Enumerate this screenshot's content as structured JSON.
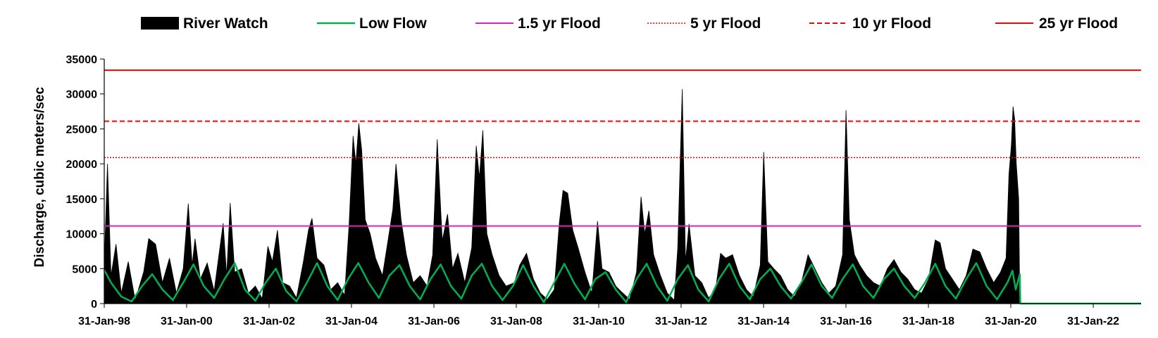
{
  "chart_data": {
    "type": "area",
    "title": "",
    "xlabel": "",
    "ylabel": "Discharge, cubic meters/sec",
    "ylim": [
      0,
      35000
    ],
    "xlim": [
      "1998-01-31",
      "2023-03-31"
    ],
    "grid": false,
    "legend_position": "top",
    "y_ticks": [
      0,
      5000,
      10000,
      15000,
      20000,
      25000,
      30000,
      35000
    ],
    "x_tick_labels": [
      "31-Jan-98",
      "31-Jan-00",
      "31-Jan-02",
      "31-Jan-04",
      "31-Jan-06",
      "31-Jan-08",
      "31-Jan-10",
      "31-Jan-12",
      "31-Jan-14",
      "31-Jan-16",
      "31-Jan-18",
      "31-Jan-20",
      "31-Jan-22"
    ],
    "x_tick_dates": [
      "1998-01-31",
      "2000-01-31",
      "2002-01-31",
      "2004-01-31",
      "2006-01-31",
      "2008-01-31",
      "2010-01-31",
      "2012-01-31",
      "2014-01-31",
      "2016-01-31",
      "2018-01-31",
      "2020-01-31",
      "2022-01-31"
    ],
    "series": [
      {
        "name": "River Watch",
        "style": "area",
        "color": "#000000",
        "points": [
          [
            "1998-01-31",
            5500
          ],
          [
            "1998-03-01",
            20000
          ],
          [
            "1998-04-01",
            4000
          ],
          [
            "1998-05-15",
            8500
          ],
          [
            "1998-07-01",
            1500
          ],
          [
            "1998-09-01",
            6000
          ],
          [
            "1998-11-01",
            500
          ],
          [
            "1999-01-15",
            4500
          ],
          [
            "1999-03-01",
            9300
          ],
          [
            "1999-05-01",
            8500
          ],
          [
            "1999-07-01",
            3000
          ],
          [
            "1999-09-01",
            6500
          ],
          [
            "1999-11-01",
            1500
          ],
          [
            "2000-01-01",
            5000
          ],
          [
            "2000-02-15",
            14300
          ],
          [
            "2000-03-20",
            5500
          ],
          [
            "2000-04-15",
            9300
          ],
          [
            "2000-06-01",
            3500
          ],
          [
            "2000-08-01",
            5800
          ],
          [
            "2000-10-01",
            1800
          ],
          [
            "2000-12-20",
            11500
          ],
          [
            "2001-01-20",
            4000
          ],
          [
            "2001-02-20",
            14400
          ],
          [
            "2001-04-01",
            4500
          ],
          [
            "2001-06-01",
            5000
          ],
          [
            "2001-08-01",
            1500
          ],
          [
            "2001-10-01",
            2500
          ],
          [
            "2001-12-01",
            700
          ],
          [
            "2002-01-20",
            8200
          ],
          [
            "2002-03-01",
            6000
          ],
          [
            "2002-04-15",
            10500
          ],
          [
            "2002-06-01",
            3000
          ],
          [
            "2002-08-01",
            2500
          ],
          [
            "2002-10-01",
            800
          ],
          [
            "2002-12-01",
            6000
          ],
          [
            "2003-01-15",
            10500
          ],
          [
            "2003-02-15",
            12200
          ],
          [
            "2003-04-01",
            6500
          ],
          [
            "2003-06-01",
            5500
          ],
          [
            "2003-08-01",
            2000
          ],
          [
            "2003-10-01",
            3000
          ],
          [
            "2003-12-01",
            1200
          ],
          [
            "2004-01-10",
            11300
          ],
          [
            "2004-02-15",
            24000
          ],
          [
            "2004-03-10",
            20000
          ],
          [
            "2004-04-05",
            25800
          ],
          [
            "2004-05-01",
            22000
          ],
          [
            "2004-06-01",
            12000
          ],
          [
            "2004-07-15",
            10000
          ],
          [
            "2004-09-01",
            6500
          ],
          [
            "2004-11-01",
            4000
          ],
          [
            "2004-12-20",
            9000
          ],
          [
            "2005-02-01",
            13500
          ],
          [
            "2005-03-01",
            20000
          ],
          [
            "2005-04-15",
            12000
          ],
          [
            "2005-06-01",
            7000
          ],
          [
            "2005-08-01",
            3000
          ],
          [
            "2005-10-01",
            4000
          ],
          [
            "2005-12-01",
            2500
          ],
          [
            "2006-01-20",
            7000
          ],
          [
            "2006-03-01",
            23500
          ],
          [
            "2006-04-15",
            9000
          ],
          [
            "2006-06-01",
            12800
          ],
          [
            "2006-07-15",
            5000
          ],
          [
            "2006-09-01",
            7200
          ],
          [
            "2006-11-01",
            3000
          ],
          [
            "2007-01-01",
            8000
          ],
          [
            "2007-02-10",
            22600
          ],
          [
            "2007-03-10",
            18000
          ],
          [
            "2007-04-10",
            24800
          ],
          [
            "2007-05-15",
            10000
          ],
          [
            "2007-07-01",
            7000
          ],
          [
            "2007-09-01",
            4000
          ],
          [
            "2007-11-01",
            2500
          ],
          [
            "2008-01-15",
            3000
          ],
          [
            "2008-03-01",
            5500
          ],
          [
            "2008-05-01",
            7200
          ],
          [
            "2008-07-01",
            3500
          ],
          [
            "2008-09-01",
            1500
          ],
          [
            "2008-11-01",
            600
          ],
          [
            "2009-01-01",
            2000
          ],
          [
            "2009-02-15",
            11500
          ],
          [
            "2009-03-20",
            16200
          ],
          [
            "2009-05-01",
            15800
          ],
          [
            "2009-06-15",
            10500
          ],
          [
            "2009-08-01",
            8000
          ],
          [
            "2009-10-01",
            4500
          ],
          [
            "2009-12-01",
            1500
          ],
          [
            "2010-01-20",
            11800
          ],
          [
            "2010-03-01",
            5000
          ],
          [
            "2010-05-01",
            4500
          ],
          [
            "2010-07-01",
            2500
          ],
          [
            "2010-09-01",
            1500
          ],
          [
            "2010-11-01",
            600
          ],
          [
            "2011-01-01",
            4500
          ],
          [
            "2011-02-10",
            15300
          ],
          [
            "2011-03-15",
            10000
          ],
          [
            "2011-04-20",
            13300
          ],
          [
            "2011-06-01",
            7000
          ],
          [
            "2011-08-01",
            4000
          ],
          [
            "2011-10-01",
            1500
          ],
          [
            "2011-12-01",
            500
          ],
          [
            "2012-01-01",
            8000
          ],
          [
            "2012-02-10",
            30700
          ],
          [
            "2012-03-10",
            6000
          ],
          [
            "2012-04-10",
            11400
          ],
          [
            "2012-06-01",
            4000
          ],
          [
            "2012-08-01",
            3000
          ],
          [
            "2012-10-01",
            800
          ],
          [
            "2012-12-01",
            2000
          ],
          [
            "2013-01-15",
            7200
          ],
          [
            "2013-03-01",
            6500
          ],
          [
            "2013-05-01",
            7000
          ],
          [
            "2013-07-01",
            4000
          ],
          [
            "2013-09-01",
            2000
          ],
          [
            "2013-11-01",
            1000
          ],
          [
            "2014-01-01",
            5500
          ],
          [
            "2014-02-01",
            21700
          ],
          [
            "2014-03-10",
            6000
          ],
          [
            "2014-05-01",
            5000
          ],
          [
            "2014-07-01",
            4000
          ],
          [
            "2014-09-01",
            2000
          ],
          [
            "2014-11-01",
            1000
          ],
          [
            "2015-01-01",
            3000
          ],
          [
            "2015-03-01",
            7000
          ],
          [
            "2015-05-01",
            5000
          ],
          [
            "2015-07-01",
            3000
          ],
          [
            "2015-09-01",
            1500
          ],
          [
            "2015-11-01",
            2500
          ],
          [
            "2016-01-01",
            7000
          ],
          [
            "2016-02-01",
            27700
          ],
          [
            "2016-03-01",
            12000
          ],
          [
            "2016-04-15",
            7000
          ],
          [
            "2016-06-01",
            5500
          ],
          [
            "2016-08-01",
            4000
          ],
          [
            "2016-10-01",
            3000
          ],
          [
            "2016-12-01",
            2500
          ],
          [
            "2017-02-01",
            5000
          ],
          [
            "2017-04-01",
            6300
          ],
          [
            "2017-06-01",
            4500
          ],
          [
            "2017-08-01",
            3500
          ],
          [
            "2017-10-01",
            2000
          ],
          [
            "2017-12-01",
            1500
          ],
          [
            "2018-02-01",
            3500
          ],
          [
            "2018-04-01",
            9100
          ],
          [
            "2018-05-15",
            8700
          ],
          [
            "2018-07-01",
            5000
          ],
          [
            "2018-09-01",
            3500
          ],
          [
            "2018-11-01",
            2000
          ],
          [
            "2019-01-01",
            4000
          ],
          [
            "2019-03-01",
            7800
          ],
          [
            "2019-05-01",
            7400
          ],
          [
            "2019-07-01",
            5000
          ],
          [
            "2019-09-01",
            3000
          ],
          [
            "2019-11-01",
            4500
          ],
          [
            "2019-12-20",
            6500
          ],
          [
            "2020-01-15",
            18500
          ],
          [
            "2020-02-05",
            22700
          ],
          [
            "2020-02-20",
            28200
          ],
          [
            "2020-03-05",
            26500
          ],
          [
            "2020-03-20",
            20000
          ],
          [
            "2020-04-10",
            15000
          ],
          [
            "2020-04-20",
            0
          ]
        ]
      },
      {
        "name": "Low Flow",
        "style": "line",
        "color": "#00b050",
        "points": [
          [
            "1998-01-31",
            4800
          ],
          [
            "1998-04-01",
            3000
          ],
          [
            "1998-07-01",
            1000
          ],
          [
            "1998-10-01",
            300
          ],
          [
            "1999-01-01",
            2500
          ],
          [
            "1999-04-01",
            4200
          ],
          [
            "1999-07-01",
            2000
          ],
          [
            "1999-10-01",
            500
          ],
          [
            "2000-01-01",
            3000
          ],
          [
            "2000-04-01",
            5600
          ],
          [
            "2000-07-01",
            2500
          ],
          [
            "2000-10-01",
            800
          ],
          [
            "2001-01-01",
            3500
          ],
          [
            "2001-04-01",
            5800
          ],
          [
            "2001-07-01",
            2000
          ],
          [
            "2001-10-01",
            400
          ],
          [
            "2002-01-01",
            3000
          ],
          [
            "2002-04-01",
            5000
          ],
          [
            "2002-07-01",
            1800
          ],
          [
            "2002-10-01",
            300
          ],
          [
            "2003-01-01",
            3000
          ],
          [
            "2003-04-01",
            5800
          ],
          [
            "2003-07-01",
            2500
          ],
          [
            "2003-10-01",
            500
          ],
          [
            "2004-01-01",
            3500
          ],
          [
            "2004-04-01",
            5800
          ],
          [
            "2004-07-01",
            3000
          ],
          [
            "2004-10-01",
            800
          ],
          [
            "2005-01-01",
            4000
          ],
          [
            "2005-04-01",
            5500
          ],
          [
            "2005-07-01",
            2500
          ],
          [
            "2005-10-01",
            600
          ],
          [
            "2006-01-01",
            3500
          ],
          [
            "2006-04-01",
            5600
          ],
          [
            "2006-07-01",
            2500
          ],
          [
            "2006-10-01",
            700
          ],
          [
            "2007-01-01",
            4000
          ],
          [
            "2007-04-01",
            5700
          ],
          [
            "2007-07-01",
            2500
          ],
          [
            "2007-10-01",
            500
          ],
          [
            "2008-01-01",
            2500
          ],
          [
            "2008-04-01",
            5500
          ],
          [
            "2008-07-01",
            2500
          ],
          [
            "2008-10-01",
            200
          ],
          [
            "2009-01-01",
            3000
          ],
          [
            "2009-04-01",
            5700
          ],
          [
            "2009-07-01",
            2800
          ],
          [
            "2009-10-01",
            600
          ],
          [
            "2010-01-01",
            3500
          ],
          [
            "2010-04-01",
            4500
          ],
          [
            "2010-07-01",
            2000
          ],
          [
            "2010-10-01",
            200
          ],
          [
            "2011-01-01",
            3500
          ],
          [
            "2011-04-01",
            5700
          ],
          [
            "2011-07-01",
            2500
          ],
          [
            "2011-10-01",
            400
          ],
          [
            "2012-01-01",
            3500
          ],
          [
            "2012-04-01",
            5500
          ],
          [
            "2012-07-01",
            2000
          ],
          [
            "2012-10-01",
            300
          ],
          [
            "2013-01-01",
            3500
          ],
          [
            "2013-04-01",
            5700
          ],
          [
            "2013-07-01",
            2500
          ],
          [
            "2013-10-01",
            600
          ],
          [
            "2014-01-01",
            3500
          ],
          [
            "2014-04-01",
            5000
          ],
          [
            "2014-07-01",
            2500
          ],
          [
            "2014-10-01",
            700
          ],
          [
            "2015-01-01",
            3000
          ],
          [
            "2015-04-01",
            5600
          ],
          [
            "2015-07-01",
            2500
          ],
          [
            "2015-10-01",
            800
          ],
          [
            "2016-01-01",
            3500
          ],
          [
            "2016-04-01",
            5600
          ],
          [
            "2016-07-01",
            2500
          ],
          [
            "2016-10-01",
            800
          ],
          [
            "2017-01-01",
            3500
          ],
          [
            "2017-04-01",
            5000
          ],
          [
            "2017-07-01",
            2500
          ],
          [
            "2017-10-01",
            800
          ],
          [
            "2018-01-01",
            3000
          ],
          [
            "2018-04-01",
            5700
          ],
          [
            "2018-07-01",
            2500
          ],
          [
            "2018-10-01",
            700
          ],
          [
            "2019-01-01",
            3500
          ],
          [
            "2019-04-01",
            5800
          ],
          [
            "2019-07-01",
            2500
          ],
          [
            "2019-10-01",
            600
          ],
          [
            "2020-01-01",
            3000
          ],
          [
            "2020-02-15",
            4700
          ],
          [
            "2020-03-15",
            2000
          ],
          [
            "2020-04-20",
            4200
          ],
          [
            "2020-04-25",
            0
          ],
          [
            "2023-03-31",
            0
          ]
        ]
      },
      {
        "name": "1.5 yr Flood",
        "style": "hline",
        "color": "#e020c0",
        "dash": "solid",
        "value": 11100
      },
      {
        "name": "5 yr Flood",
        "style": "hline",
        "color": "#ff0000",
        "dash": "dotted",
        "value": 20900
      },
      {
        "name": "10 yr Flood",
        "style": "hline",
        "color": "#ff0000",
        "dash": "dashed",
        "value": 26100
      },
      {
        "name": "25 yr Flood",
        "style": "hline",
        "color": "#ff0000",
        "dash": "solid",
        "value": 33400
      }
    ]
  }
}
